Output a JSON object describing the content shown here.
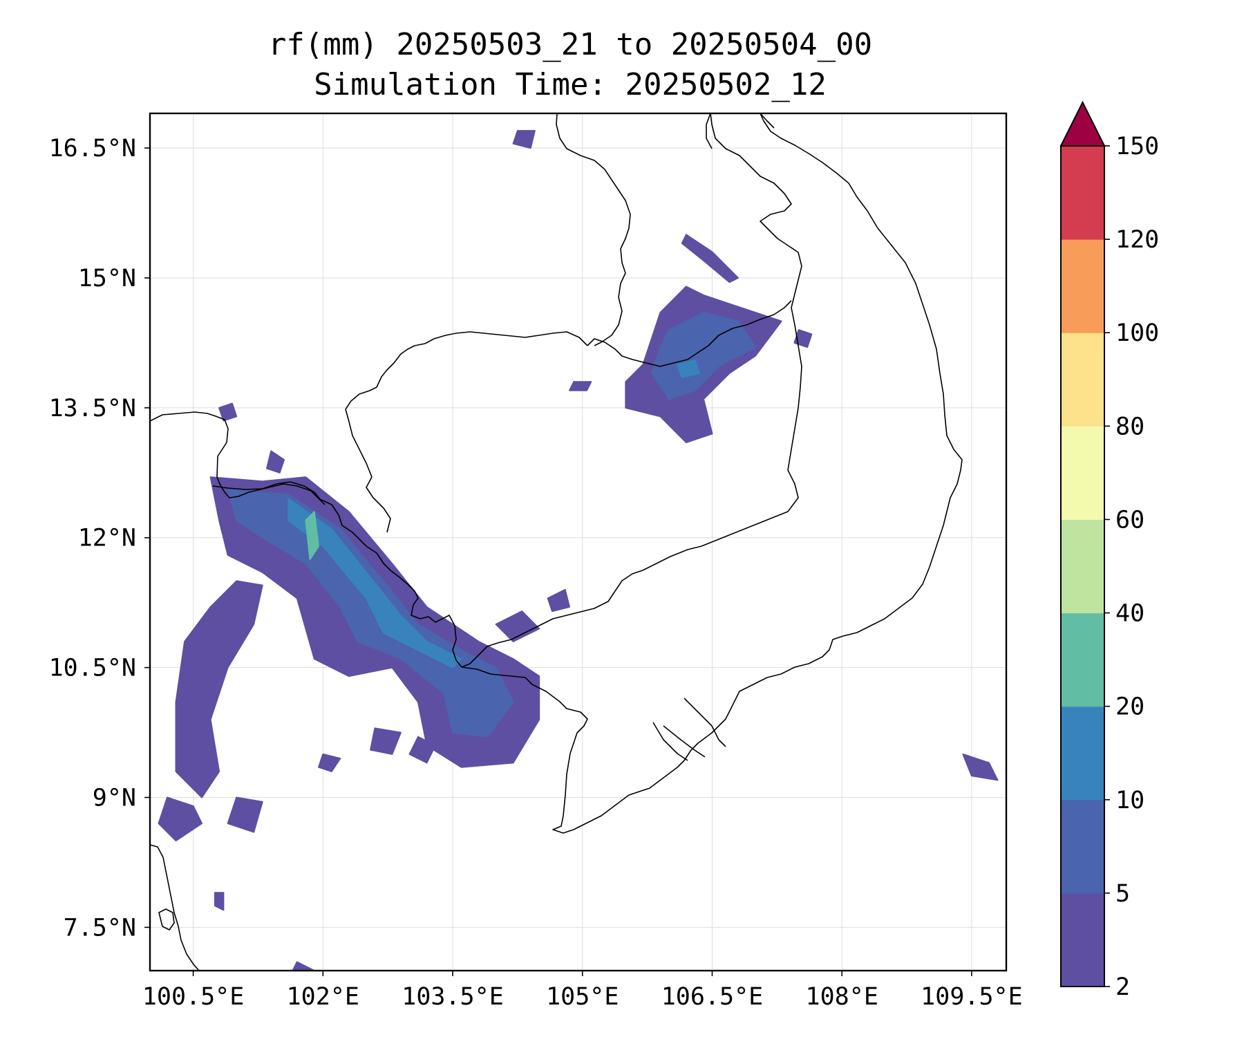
{
  "title": {
    "line1": "rf(mm) 20250503_21 to 20250504_00",
    "line2": "Simulation Time: 20250502_12"
  },
  "map": {
    "lon_range": [
      100.0,
      109.9
    ],
    "lat_range": [
      7.0,
      16.9
    ],
    "lon_ticks": [
      {
        "value": 100.5,
        "label": "100.5°E"
      },
      {
        "value": 102.0,
        "label": "102°E"
      },
      {
        "value": 103.5,
        "label": "103.5°E"
      },
      {
        "value": 105.0,
        "label": "105°E"
      },
      {
        "value": 106.5,
        "label": "106.5°E"
      },
      {
        "value": 108.0,
        "label": "108°E"
      },
      {
        "value": 109.5,
        "label": "109.5°E"
      }
    ],
    "lat_ticks": [
      {
        "value": 16.5,
        "label": "16.5°N"
      },
      {
        "value": 15.0,
        "label": "15°N"
      },
      {
        "value": 13.5,
        "label": "13.5°N"
      },
      {
        "value": 12.0,
        "label": "12°N"
      },
      {
        "value": 10.5,
        "label": "10.5°N"
      },
      {
        "value": 9.0,
        "label": "9°N"
      },
      {
        "value": 7.5,
        "label": "7.5°N"
      }
    ],
    "grid": true,
    "coastline_color": "#000000",
    "rain_regions": [
      {
        "name": "northeast-cluster-outer",
        "level": 0,
        "points": [
          [
            105.9,
            14.6
          ],
          [
            106.2,
            14.9
          ],
          [
            106.4,
            14.8
          ],
          [
            106.7,
            14.7
          ],
          [
            107.0,
            14.6
          ],
          [
            107.3,
            14.5
          ],
          [
            107.0,
            14.1
          ],
          [
            106.7,
            13.9
          ],
          [
            106.4,
            13.6
          ],
          [
            106.5,
            13.2
          ],
          [
            106.2,
            13.1
          ],
          [
            105.9,
            13.4
          ],
          [
            105.5,
            13.5
          ],
          [
            105.5,
            13.8
          ],
          [
            105.7,
            14.0
          ],
          [
            105.8,
            14.3
          ]
        ]
      },
      {
        "name": "northeast-cluster-core",
        "level": 1,
        "points": [
          [
            106.0,
            14.4
          ],
          [
            106.4,
            14.6
          ],
          [
            106.8,
            14.5
          ],
          [
            107.0,
            14.2
          ],
          [
            106.6,
            14.0
          ],
          [
            106.3,
            13.7
          ],
          [
            106.0,
            13.6
          ],
          [
            105.8,
            13.9
          ],
          [
            105.9,
            14.2
          ]
        ]
      },
      {
        "name": "northeast-cluster-peak",
        "level": 2,
        "points": [
          [
            106.1,
            14.0
          ],
          [
            106.3,
            14.05
          ],
          [
            106.35,
            13.9
          ],
          [
            106.15,
            13.85
          ]
        ]
      },
      {
        "name": "northeast-band",
        "level": 0,
        "points": [
          [
            106.2,
            15.5
          ],
          [
            106.5,
            15.3
          ],
          [
            106.8,
            15.0
          ],
          [
            106.7,
            14.95
          ],
          [
            106.4,
            15.2
          ],
          [
            106.15,
            15.4
          ]
        ]
      },
      {
        "name": "west-coast-band-outer",
        "level": 0,
        "points": [
          [
            100.7,
            12.7
          ],
          [
            101.3,
            12.65
          ],
          [
            101.8,
            12.7
          ],
          [
            102.3,
            12.3
          ],
          [
            102.8,
            11.7
          ],
          [
            103.2,
            11.2
          ],
          [
            103.8,
            10.8
          ],
          [
            104.2,
            10.6
          ],
          [
            104.5,
            10.4
          ],
          [
            104.5,
            9.9
          ],
          [
            104.2,
            9.4
          ],
          [
            103.6,
            9.35
          ],
          [
            103.2,
            9.6
          ],
          [
            103.1,
            10.1
          ],
          [
            102.8,
            10.5
          ],
          [
            102.3,
            10.4
          ],
          [
            101.9,
            10.6
          ],
          [
            101.7,
            11.3
          ],
          [
            101.3,
            11.6
          ],
          [
            100.9,
            11.8
          ],
          [
            100.8,
            12.2
          ]
        ]
      },
      {
        "name": "west-coast-band-mid",
        "level": 1,
        "points": [
          [
            100.9,
            12.55
          ],
          [
            101.6,
            12.5
          ],
          [
            102.2,
            12.1
          ],
          [
            102.7,
            11.5
          ],
          [
            103.1,
            11.0
          ],
          [
            103.6,
            10.7
          ],
          [
            104.0,
            10.5
          ],
          [
            104.2,
            10.1
          ],
          [
            103.9,
            9.7
          ],
          [
            103.5,
            9.75
          ],
          [
            103.4,
            10.2
          ],
          [
            102.9,
            10.6
          ],
          [
            102.4,
            10.8
          ],
          [
            102.2,
            11.2
          ],
          [
            101.8,
            11.7
          ],
          [
            101.3,
            12.0
          ],
          [
            101.0,
            12.2
          ]
        ]
      },
      {
        "name": "west-coast-band-core",
        "level": 2,
        "points": [
          [
            101.6,
            12.45
          ],
          [
            102.1,
            12.1
          ],
          [
            102.5,
            11.6
          ],
          [
            102.9,
            11.1
          ],
          [
            103.2,
            10.8
          ],
          [
            103.6,
            10.6
          ],
          [
            103.5,
            10.5
          ],
          [
            103.1,
            10.7
          ],
          [
            102.7,
            10.9
          ],
          [
            102.5,
            11.3
          ],
          [
            102.0,
            11.9
          ],
          [
            101.6,
            12.2
          ]
        ]
      },
      {
        "name": "west-coast-band-peak",
        "level": 3,
        "points": [
          [
            101.8,
            12.2
          ],
          [
            101.9,
            12.3
          ],
          [
            101.95,
            11.9
          ],
          [
            101.85,
            11.75
          ]
        ]
      },
      {
        "name": "southwest-sea-band",
        "level": 0,
        "points": [
          [
            101.0,
            11.5
          ],
          [
            101.3,
            11.45
          ],
          [
            101.2,
            11.0
          ],
          [
            100.9,
            10.5
          ],
          [
            100.7,
            9.9
          ],
          [
            100.8,
            9.3
          ],
          [
            100.6,
            9.0
          ],
          [
            100.3,
            9.3
          ],
          [
            100.3,
            10.1
          ],
          [
            100.4,
            10.8
          ],
          [
            100.7,
            11.2
          ]
        ]
      },
      {
        "name": "gulf-shower-1",
        "level": 0,
        "points": [
          [
            100.2,
            9.0
          ],
          [
            100.5,
            8.9
          ],
          [
            100.6,
            8.7
          ],
          [
            100.3,
            8.5
          ],
          [
            100.1,
            8.7
          ]
        ]
      },
      {
        "name": "gulf-shower-2",
        "level": 0,
        "points": [
          [
            101.0,
            9.0
          ],
          [
            101.3,
            8.95
          ],
          [
            101.2,
            8.6
          ],
          [
            100.9,
            8.7
          ]
        ]
      },
      {
        "name": "gulf-shower-3",
        "level": 0,
        "points": [
          [
            102.6,
            9.8
          ],
          [
            102.9,
            9.75
          ],
          [
            102.8,
            9.5
          ],
          [
            102.55,
            9.55
          ]
        ]
      },
      {
        "name": "gulf-shower-4",
        "level": 0,
        "points": [
          [
            103.1,
            9.7
          ],
          [
            103.3,
            9.6
          ],
          [
            103.2,
            9.4
          ],
          [
            103.0,
            9.5
          ]
        ]
      },
      {
        "name": "gulf-shower-5",
        "level": 0,
        "points": [
          [
            102.0,
            9.5
          ],
          [
            102.2,
            9.45
          ],
          [
            102.1,
            9.3
          ],
          [
            101.95,
            9.35
          ]
        ]
      },
      {
        "name": "coastal-speck",
        "level": 0,
        "points": [
          [
            104.0,
            11.0
          ],
          [
            104.3,
            11.15
          ],
          [
            104.5,
            10.95
          ],
          [
            104.2,
            10.8
          ]
        ]
      },
      {
        "name": "cambodia-speck",
        "level": 0,
        "points": [
          [
            104.6,
            11.3
          ],
          [
            104.8,
            11.4
          ],
          [
            104.85,
            11.2
          ],
          [
            104.65,
            11.15
          ]
        ]
      },
      {
        "name": "laos-speck",
        "level": 0,
        "points": [
          [
            104.9,
            13.8
          ],
          [
            105.1,
            13.8
          ],
          [
            105.05,
            13.7
          ],
          [
            104.85,
            13.7
          ]
        ]
      },
      {
        "name": "thai-north-speck",
        "level": 0,
        "points": [
          [
            104.25,
            16.7
          ],
          [
            104.45,
            16.7
          ],
          [
            104.4,
            16.5
          ],
          [
            104.2,
            16.55
          ]
        ]
      },
      {
        "name": "border-speck",
        "level": 0,
        "points": [
          [
            107.5,
            14.4
          ],
          [
            107.65,
            14.35
          ],
          [
            107.6,
            14.2
          ],
          [
            107.45,
            14.25
          ]
        ]
      },
      {
        "name": "east-sea-speck",
        "level": 0,
        "points": [
          [
            109.4,
            9.5
          ],
          [
            109.7,
            9.4
          ],
          [
            109.8,
            9.2
          ],
          [
            109.5,
            9.25
          ]
        ]
      },
      {
        "name": "thai-coast-speck",
        "level": 0,
        "points": [
          [
            100.8,
            13.5
          ],
          [
            100.95,
            13.55
          ],
          [
            101.0,
            13.4
          ],
          [
            100.85,
            13.35
          ]
        ]
      },
      {
        "name": "south-speck",
        "level": 0,
        "points": [
          [
            101.7,
            7.1
          ],
          [
            101.9,
            7.0
          ],
          [
            101.8,
            6.95
          ],
          [
            101.65,
            7.0
          ]
        ]
      },
      {
        "name": "south-speck-2",
        "level": 0,
        "points": [
          [
            100.75,
            7.9
          ],
          [
            100.85,
            7.9
          ],
          [
            100.85,
            7.7
          ],
          [
            100.75,
            7.75
          ]
        ]
      },
      {
        "name": "mainland-speck",
        "level": 0,
        "points": [
          [
            101.4,
            13.0
          ],
          [
            101.55,
            12.9
          ],
          [
            101.5,
            12.75
          ],
          [
            101.35,
            12.8
          ]
        ]
      }
    ]
  },
  "colorbar": {
    "levels": [
      {
        "label": "2",
        "color": "#5e4fa2"
      },
      {
        "label": "5",
        "color": "#4a64ae"
      },
      {
        "label": "10",
        "color": "#3983bd"
      },
      {
        "label": "20",
        "color": "#62bda5"
      },
      {
        "label": "40",
        "color": "#bee4a0"
      },
      {
        "label": "60",
        "color": "#f3faae"
      },
      {
        "label": "80",
        "color": "#fde18b"
      },
      {
        "label": "100",
        "color": "#f89c59"
      },
      {
        "label": "120",
        "color": "#d43d4f"
      },
      {
        "label": "150",
        "color": "#9e0142"
      }
    ],
    "extend": "max"
  }
}
